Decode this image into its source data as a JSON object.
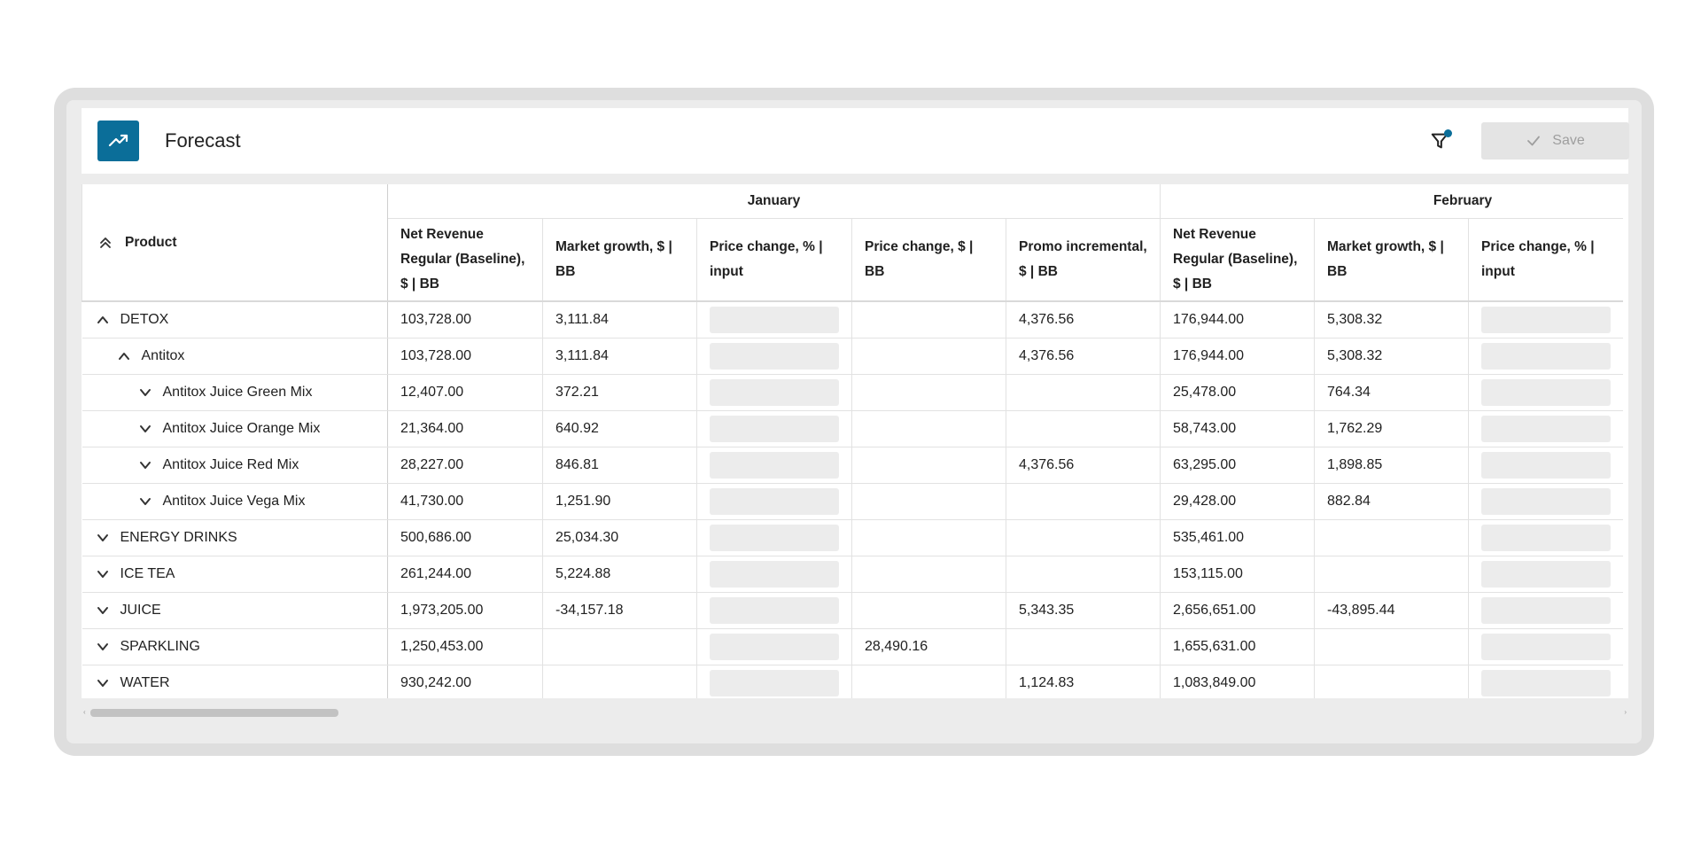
{
  "header": {
    "title": "Forecast",
    "save_label": "Save"
  },
  "colors": {
    "accent": "#0b6e99",
    "input_bg": "#ececec"
  },
  "icons": {
    "logo": "trend-up-icon",
    "filter": "filter-icon",
    "save": "check-icon"
  },
  "table": {
    "product_header": "Product",
    "months": [
      "January",
      "February"
    ],
    "columns": [
      "Net Revenue Regular (Baseline), $ | BB",
      "Market growth, $ | BB",
      "Price change, % | input",
      "Price change, $ | BB",
      "Promo incremental, $ | BB",
      "Net Revenue Regular (Baseline), $ | BB",
      "Market growth, $ | BB",
      "Price change, % | input"
    ],
    "rows": [
      {
        "label": "DETOX",
        "level": 0,
        "expanded": true,
        "cells": [
          "103,728.00",
          "3,111.84",
          "",
          "",
          "4,376.56",
          "176,944.00",
          "5,308.32",
          ""
        ]
      },
      {
        "label": "Antitox",
        "level": 1,
        "expanded": true,
        "cells": [
          "103,728.00",
          "3,111.84",
          "",
          "",
          "4,376.56",
          "176,944.00",
          "5,308.32",
          ""
        ]
      },
      {
        "label": "Antitox Juice Green Mix",
        "level": 2,
        "expanded": false,
        "cells": [
          "12,407.00",
          "372.21",
          "",
          "",
          "",
          "25,478.00",
          "764.34",
          ""
        ]
      },
      {
        "label": "Antitox Juice Orange Mix",
        "level": 2,
        "expanded": false,
        "cells": [
          "21,364.00",
          "640.92",
          "",
          "",
          "",
          "58,743.00",
          "1,762.29",
          ""
        ]
      },
      {
        "label": "Antitox Juice Red Mix",
        "level": 2,
        "expanded": false,
        "cells": [
          "28,227.00",
          "846.81",
          "",
          "",
          "4,376.56",
          "63,295.00",
          "1,898.85",
          ""
        ]
      },
      {
        "label": "Antitox Juice Vega Mix",
        "level": 2,
        "expanded": false,
        "cells": [
          "41,730.00",
          "1,251.90",
          "",
          "",
          "",
          "29,428.00",
          "882.84",
          ""
        ]
      },
      {
        "label": "ENERGY DRINKS",
        "level": 0,
        "expanded": false,
        "cells": [
          "500,686.00",
          "25,034.30",
          "",
          "",
          "",
          "535,461.00",
          "",
          ""
        ]
      },
      {
        "label": "ICE TEA",
        "level": 0,
        "expanded": false,
        "cells": [
          "261,244.00",
          "5,224.88",
          "",
          "",
          "",
          "153,115.00",
          "",
          ""
        ]
      },
      {
        "label": "JUICE",
        "level": 0,
        "expanded": false,
        "cells": [
          "1,973,205.00",
          "-34,157.18",
          "",
          "",
          "5,343.35",
          "2,656,651.00",
          "-43,895.44",
          ""
        ]
      },
      {
        "label": "SPARKLING",
        "level": 0,
        "expanded": false,
        "cells": [
          "1,250,453.00",
          "",
          "",
          "28,490.16",
          "",
          "1,655,631.00",
          "",
          ""
        ]
      },
      {
        "label": "WATER",
        "level": 0,
        "expanded": false,
        "cells": [
          "930,242.00",
          "",
          "",
          "",
          "1,124.83",
          "1,083,849.00",
          "",
          ""
        ]
      }
    ]
  }
}
